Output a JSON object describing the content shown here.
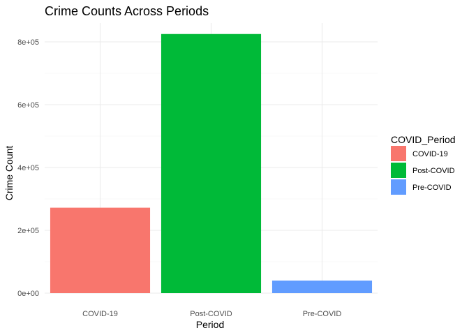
{
  "chart_data": {
    "type": "bar",
    "title": "Crime Counts Across Periods",
    "xlabel": "Period",
    "ylabel": "Crime Count",
    "categories": [
      "COVID-19",
      "Post-COVID",
      "Pre-COVID"
    ],
    "values": [
      272000,
      825000,
      40000
    ],
    "colors": [
      "#F8766D",
      "#00BA38",
      "#619CFF"
    ],
    "ylim": [
      0,
      860000
    ],
    "yticks": [
      0,
      200000,
      400000,
      600000,
      800000
    ],
    "ytick_labels": [
      "0e+00",
      "2e+05",
      "4e+05",
      "6e+05",
      "8e+05"
    ],
    "grid": true,
    "legend": {
      "title": "COVID_Period",
      "position": "right",
      "entries": [
        "COVID-19",
        "Post-COVID",
        "Pre-COVID"
      ]
    }
  }
}
